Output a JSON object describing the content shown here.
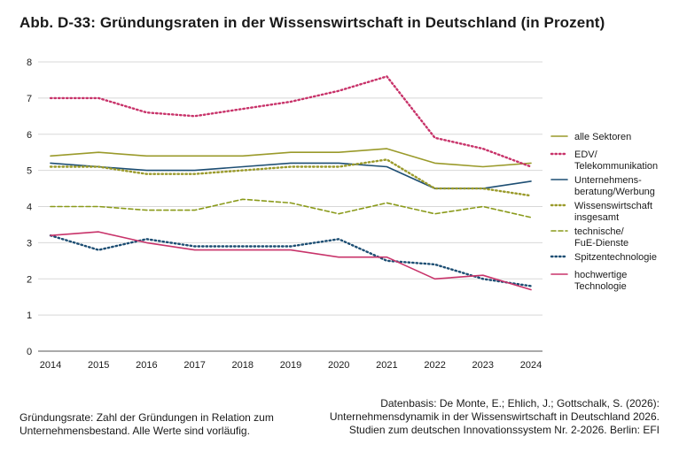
{
  "title": "Abb. D-33: Gründungsraten in der Wissenswirtschaft in Deutschland (in Prozent)",
  "notes": {
    "left": [
      "Gründungsrate: Zahl der Gründungen in Relation zum",
      "Unternehmensbestand. Alle Werte sind vorläufig."
    ],
    "right": [
      "Datenbasis: De Monte, E.; Ehlich, J.; Gottschalk, S. (2026):",
      "Unternehmensdynamik in der Wissenswirtschaft in Deutschland 2026.",
      "Studien zum deutschen Innovationssystem Nr. 2-2026. Berlin: EFI"
    ]
  },
  "chart_data": {
    "type": "line",
    "title": "",
    "xlabel": "",
    "ylabel": "",
    "x": [
      "2014",
      "2015",
      "2016",
      "2017",
      "2018",
      "2019",
      "2020",
      "2021",
      "2022",
      "2023",
      "2024"
    ],
    "ylim": [
      0,
      8
    ],
    "yticks": [
      "0",
      "1",
      "2",
      "3",
      "4",
      "5",
      "6",
      "7",
      "8"
    ],
    "grid": "horizontal",
    "legend_position": "right",
    "series": [
      {
        "name": [
          "alle Sektoren"
        ],
        "style": "solid",
        "color": "#9a9a2a",
        "values": [
          5.4,
          5.5,
          5.4,
          5.4,
          5.4,
          5.5,
          5.5,
          5.6,
          5.2,
          5.1,
          5.2
        ]
      },
      {
        "name": [
          "EDV/",
          "Telekommunikation"
        ],
        "style": "dotted",
        "color": "#c8336a",
        "values": [
          7.0,
          7.0,
          6.6,
          6.5,
          6.7,
          6.9,
          7.2,
          7.6,
          5.9,
          5.6,
          5.1
        ]
      },
      {
        "name": [
          "Unternehmens-",
          "beratung/Werbung"
        ],
        "style": "solid",
        "color": "#1d4e73",
        "values": [
          5.2,
          5.1,
          5.0,
          5.0,
          5.1,
          5.2,
          5.2,
          5.1,
          4.5,
          4.5,
          4.7
        ]
      },
      {
        "name": [
          "Wissenswirtschaft",
          "insgesamt"
        ],
        "style": "dotted",
        "color": "#9a9a2a",
        "values": [
          5.1,
          5.1,
          4.9,
          4.9,
          5.0,
          5.1,
          5.1,
          5.3,
          4.5,
          4.5,
          4.3
        ]
      },
      {
        "name": [
          "technische/",
          "FuE-Dienste"
        ],
        "style": "dashed",
        "color": "#8a9a1a",
        "values": [
          4.0,
          4.0,
          3.9,
          3.9,
          4.2,
          4.1,
          3.8,
          4.1,
          3.8,
          4.0,
          3.7
        ]
      },
      {
        "name": [
          "Spitzentechnologie"
        ],
        "style": "dotted",
        "color": "#1d4e73",
        "values": [
          3.2,
          2.8,
          3.1,
          2.9,
          2.9,
          2.9,
          3.1,
          2.5,
          2.4,
          2.0,
          1.8
        ]
      },
      {
        "name": [
          "hochwertige",
          "Technologie"
        ],
        "style": "solid",
        "color": "#c8336a",
        "values": [
          3.2,
          3.3,
          3.0,
          2.8,
          2.8,
          2.8,
          2.6,
          2.6,
          2.0,
          2.1,
          1.7
        ]
      }
    ]
  }
}
